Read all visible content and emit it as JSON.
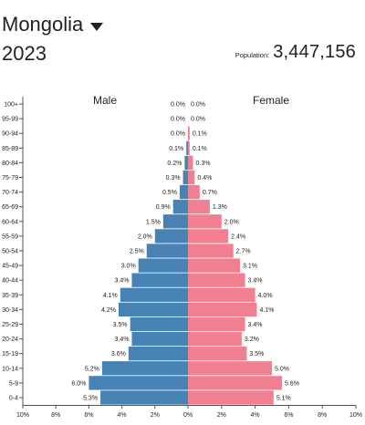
{
  "header": {
    "country": "Mongolia",
    "year": "2023",
    "population_label": "Population:",
    "population_value": "3,447,156"
  },
  "colors": {
    "male": "#4682b4",
    "female": "#f08090"
  },
  "chart_data": {
    "type": "bar",
    "orientation": "horizontal-diverging",
    "series_labels": {
      "male": "Male",
      "female": "Female"
    },
    "categories": [
      "100+",
      "95-99",
      "90-94",
      "85-89",
      "80-84",
      "75-79",
      "70-74",
      "65-69",
      "60-64",
      "55-59",
      "50-54",
      "45-49",
      "40-44",
      "35-39",
      "30-34",
      "25-29",
      "20-24",
      "15-19",
      "10-14",
      "5-9",
      "0-4"
    ],
    "male": [
      0.0,
      0.0,
      0.0,
      0.1,
      0.2,
      0.3,
      0.5,
      0.9,
      1.5,
      2.0,
      2.5,
      3.0,
      3.4,
      4.1,
      4.2,
      3.5,
      3.4,
      3.6,
      5.2,
      6.0,
      5.3
    ],
    "female": [
      0.0,
      0.0,
      0.1,
      0.1,
      0.3,
      0.4,
      0.7,
      1.3,
      2.0,
      2.4,
      2.7,
      3.1,
      3.4,
      4.0,
      4.1,
      3.4,
      3.2,
      3.5,
      5.0,
      5.6,
      5.1
    ],
    "male_labels": [
      "0.0%",
      "0.0%",
      "0.0%",
      "0.1%",
      "0.2%",
      "0.3%",
      "0.5%",
      "0.9%",
      "1.5%",
      "2.0%",
      "2.5%",
      "3.0%",
      "3.4%",
      "4.1%",
      "4.2%",
      "3.5%",
      "3.4%",
      "3.6%",
      "5.2%",
      "6.0%",
      "5.3%"
    ],
    "female_labels": [
      "0.0%",
      "0.0%",
      "0.1%",
      "0.1%",
      "0.3%",
      "0.4%",
      "0.7%",
      "1.3%",
      "2.0%",
      "2.4%",
      "2.7%",
      "3.1%",
      "3.4%",
      "4.0%",
      "4.1%",
      "3.4%",
      "3.2%",
      "3.5%",
      "5.0%",
      "5.6%",
      "5.1%"
    ],
    "xlim": [
      -10,
      10
    ],
    "xticks": [
      -10,
      -8,
      -6,
      -4,
      -2,
      0,
      2,
      4,
      6,
      8,
      10
    ],
    "xtick_labels": [
      "10%",
      "8%",
      "6%",
      "4%",
      "2%",
      "0%",
      "2%",
      "4%",
      "6%",
      "8%",
      "10%"
    ],
    "unit": "%"
  }
}
